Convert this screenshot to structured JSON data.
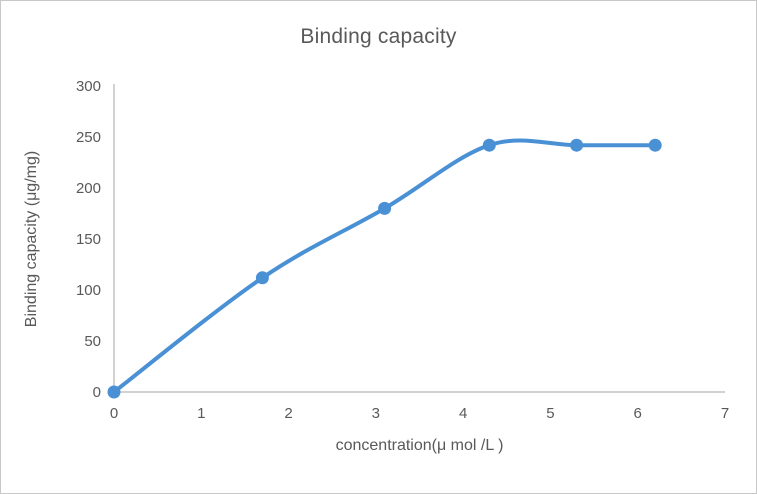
{
  "chart_data": {
    "type": "line",
    "title": "Binding capacity",
    "xlabel": "concentration(μ mol /L )",
    "ylabel": "Binding capacity (μg/mg)",
    "x": [
      0,
      1.7,
      3.1,
      4.3,
      5.3,
      6.2
    ],
    "y": [
      0,
      112,
      180,
      242,
      242,
      242
    ],
    "xlim": [
      0,
      7
    ],
    "ylim": [
      0,
      300
    ],
    "x_ticks": [
      0,
      1,
      2,
      3,
      4,
      5,
      6,
      7
    ],
    "y_ticks": [
      0,
      50,
      100,
      150,
      200,
      250,
      300
    ],
    "grid": false,
    "legend": "none",
    "smooth": true,
    "marker": "circle",
    "line_color": "#4a90d4",
    "marker_color": "#4a90d4",
    "axis_color": "#c3c3c3",
    "text_color": "#595959",
    "background_color": "#ffffff",
    "border_color": "#c8c8c8"
  }
}
